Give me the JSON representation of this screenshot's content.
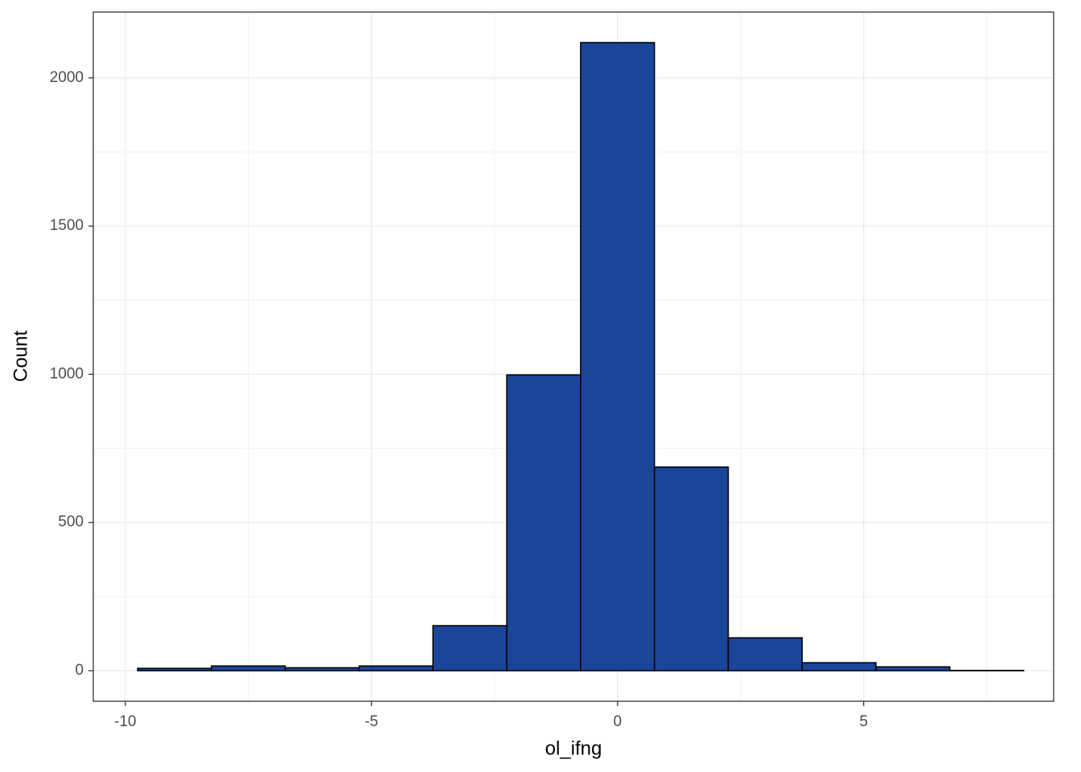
{
  "chart_data": {
    "type": "histogram",
    "x_label": "ol_ifng",
    "y_label": "Count",
    "bins": [
      -9.75,
      -8.25,
      -6.75,
      -5.25,
      -3.75,
      -2.25,
      -0.75,
      0.75,
      2.25,
      3.75,
      5.25,
      6.75,
      8.25
    ],
    "values": [
      8,
      16,
      10,
      16,
      152,
      998,
      2119,
      687,
      111,
      27,
      13,
      1
    ],
    "color": "#1a4599",
    "edge_color": "#000000",
    "xlim": [
      -10.65,
      8.86
    ],
    "ylim": [
      -103,
      2222
    ],
    "xticks": [
      -10,
      -5,
      0,
      5
    ],
    "yticks": [
      0,
      500,
      1000,
      1500,
      2000
    ],
    "grid": true
  }
}
